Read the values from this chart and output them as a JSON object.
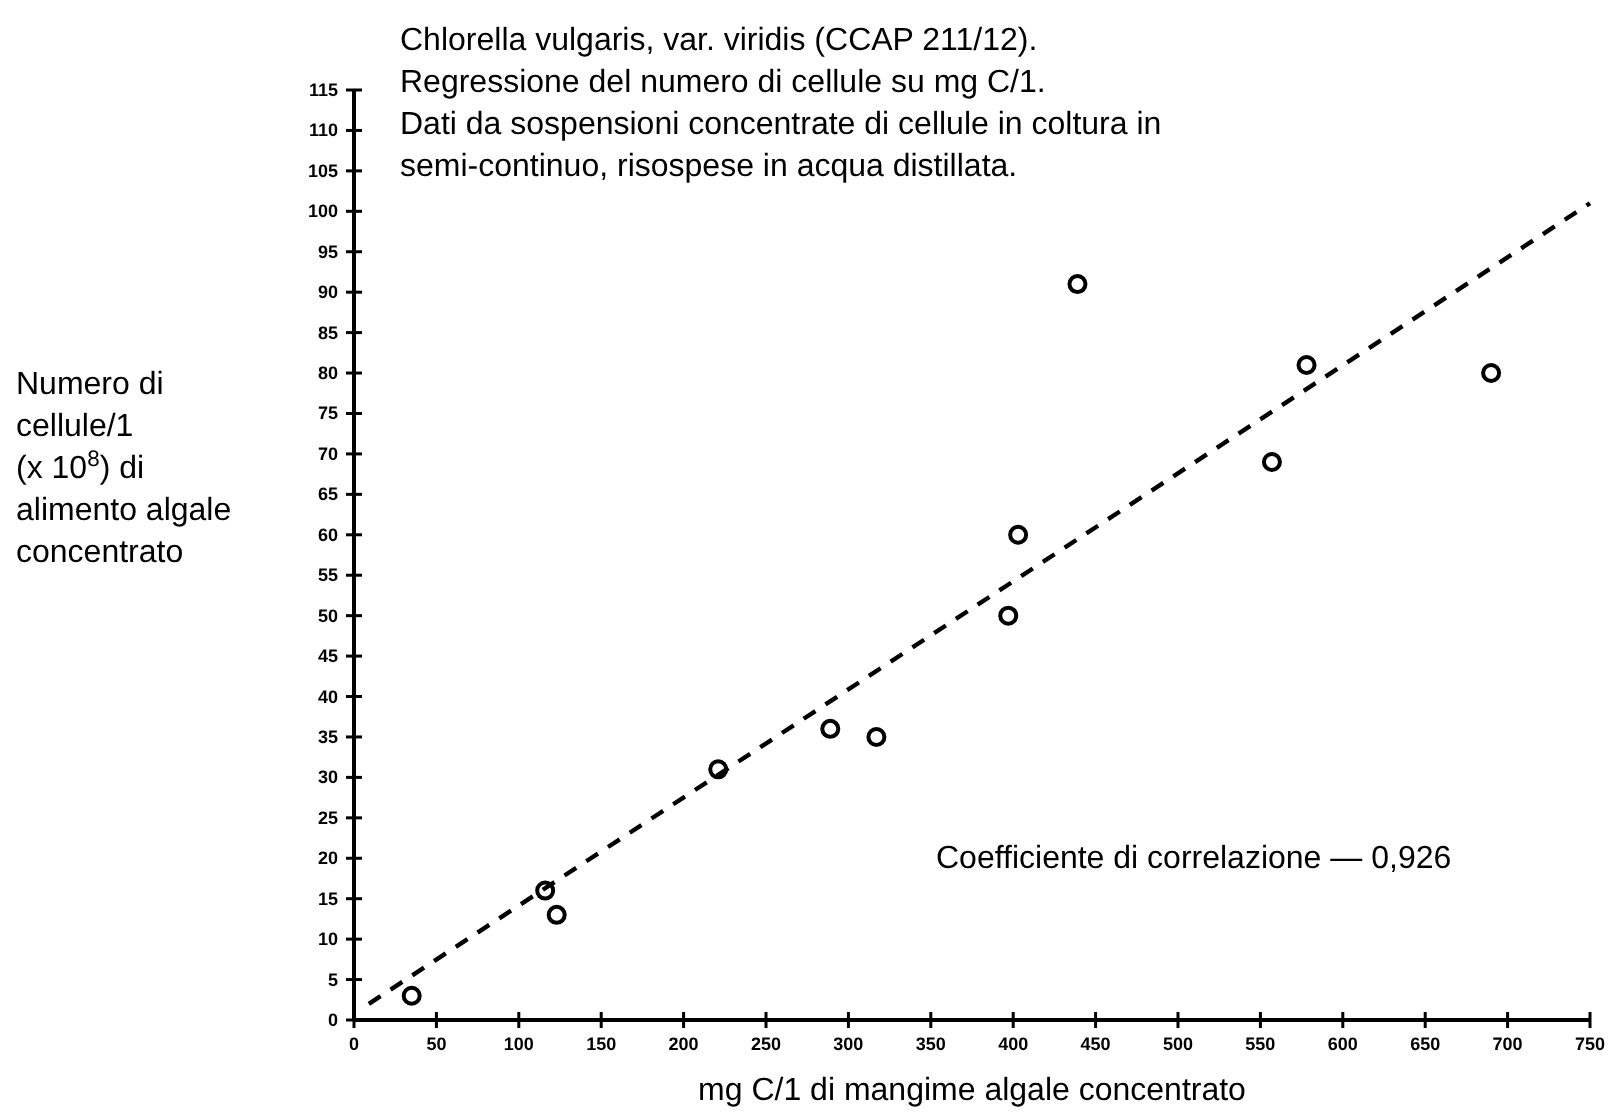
{
  "chart_data": {
    "type": "scatter",
    "title": "Chlorella vulgaris, var. viridis (CCAP 211/12).",
    "subtitle": "Regressione del numero di cellule su mg C/1.\nDati da sospensioni concentrate di cellule in coltura in\nsemi-continuo, risospese in acqua distillata.",
    "xlabel": "mg C/1 di mangime algale concentrato",
    "ylabel": "Numero di\ncellule/1\n(x 10$^{8}$) di\nalimento algale\nconcentrato",
    "annotations": [
      "Coefficiente di correlazione — 0,926"
    ],
    "xlim": [
      0,
      750
    ],
    "xticks": [
      0,
      50,
      100,
      150,
      200,
      250,
      300,
      350,
      400,
      450,
      500,
      550,
      600,
      650,
      700,
      750
    ],
    "ylim": [
      0,
      115
    ],
    "yticks": [
      0,
      5,
      10,
      15,
      20,
      25,
      30,
      35,
      40,
      45,
      50,
      55,
      60,
      65,
      70,
      75,
      80,
      85,
      90,
      95,
      100,
      105,
      110,
      115
    ],
    "grid": false,
    "marker": "circle",
    "series": [
      {
        "color": "#000000",
        "x": [
          35,
          116,
          123,
          221,
          289,
          317,
          397,
          403,
          439,
          557,
          578,
          690
        ],
        "values": [
          3,
          16,
          13,
          31,
          36,
          35,
          50,
          60,
          91,
          69,
          81,
          80
        ]
      },
      {
        "type": "line",
        "color": "#000000",
        "line_style": "dashed",
        "marker": "none",
        "x": [
          9,
          750
        ],
        "values": [
          2,
          101
        ]
      }
    ]
  }
}
